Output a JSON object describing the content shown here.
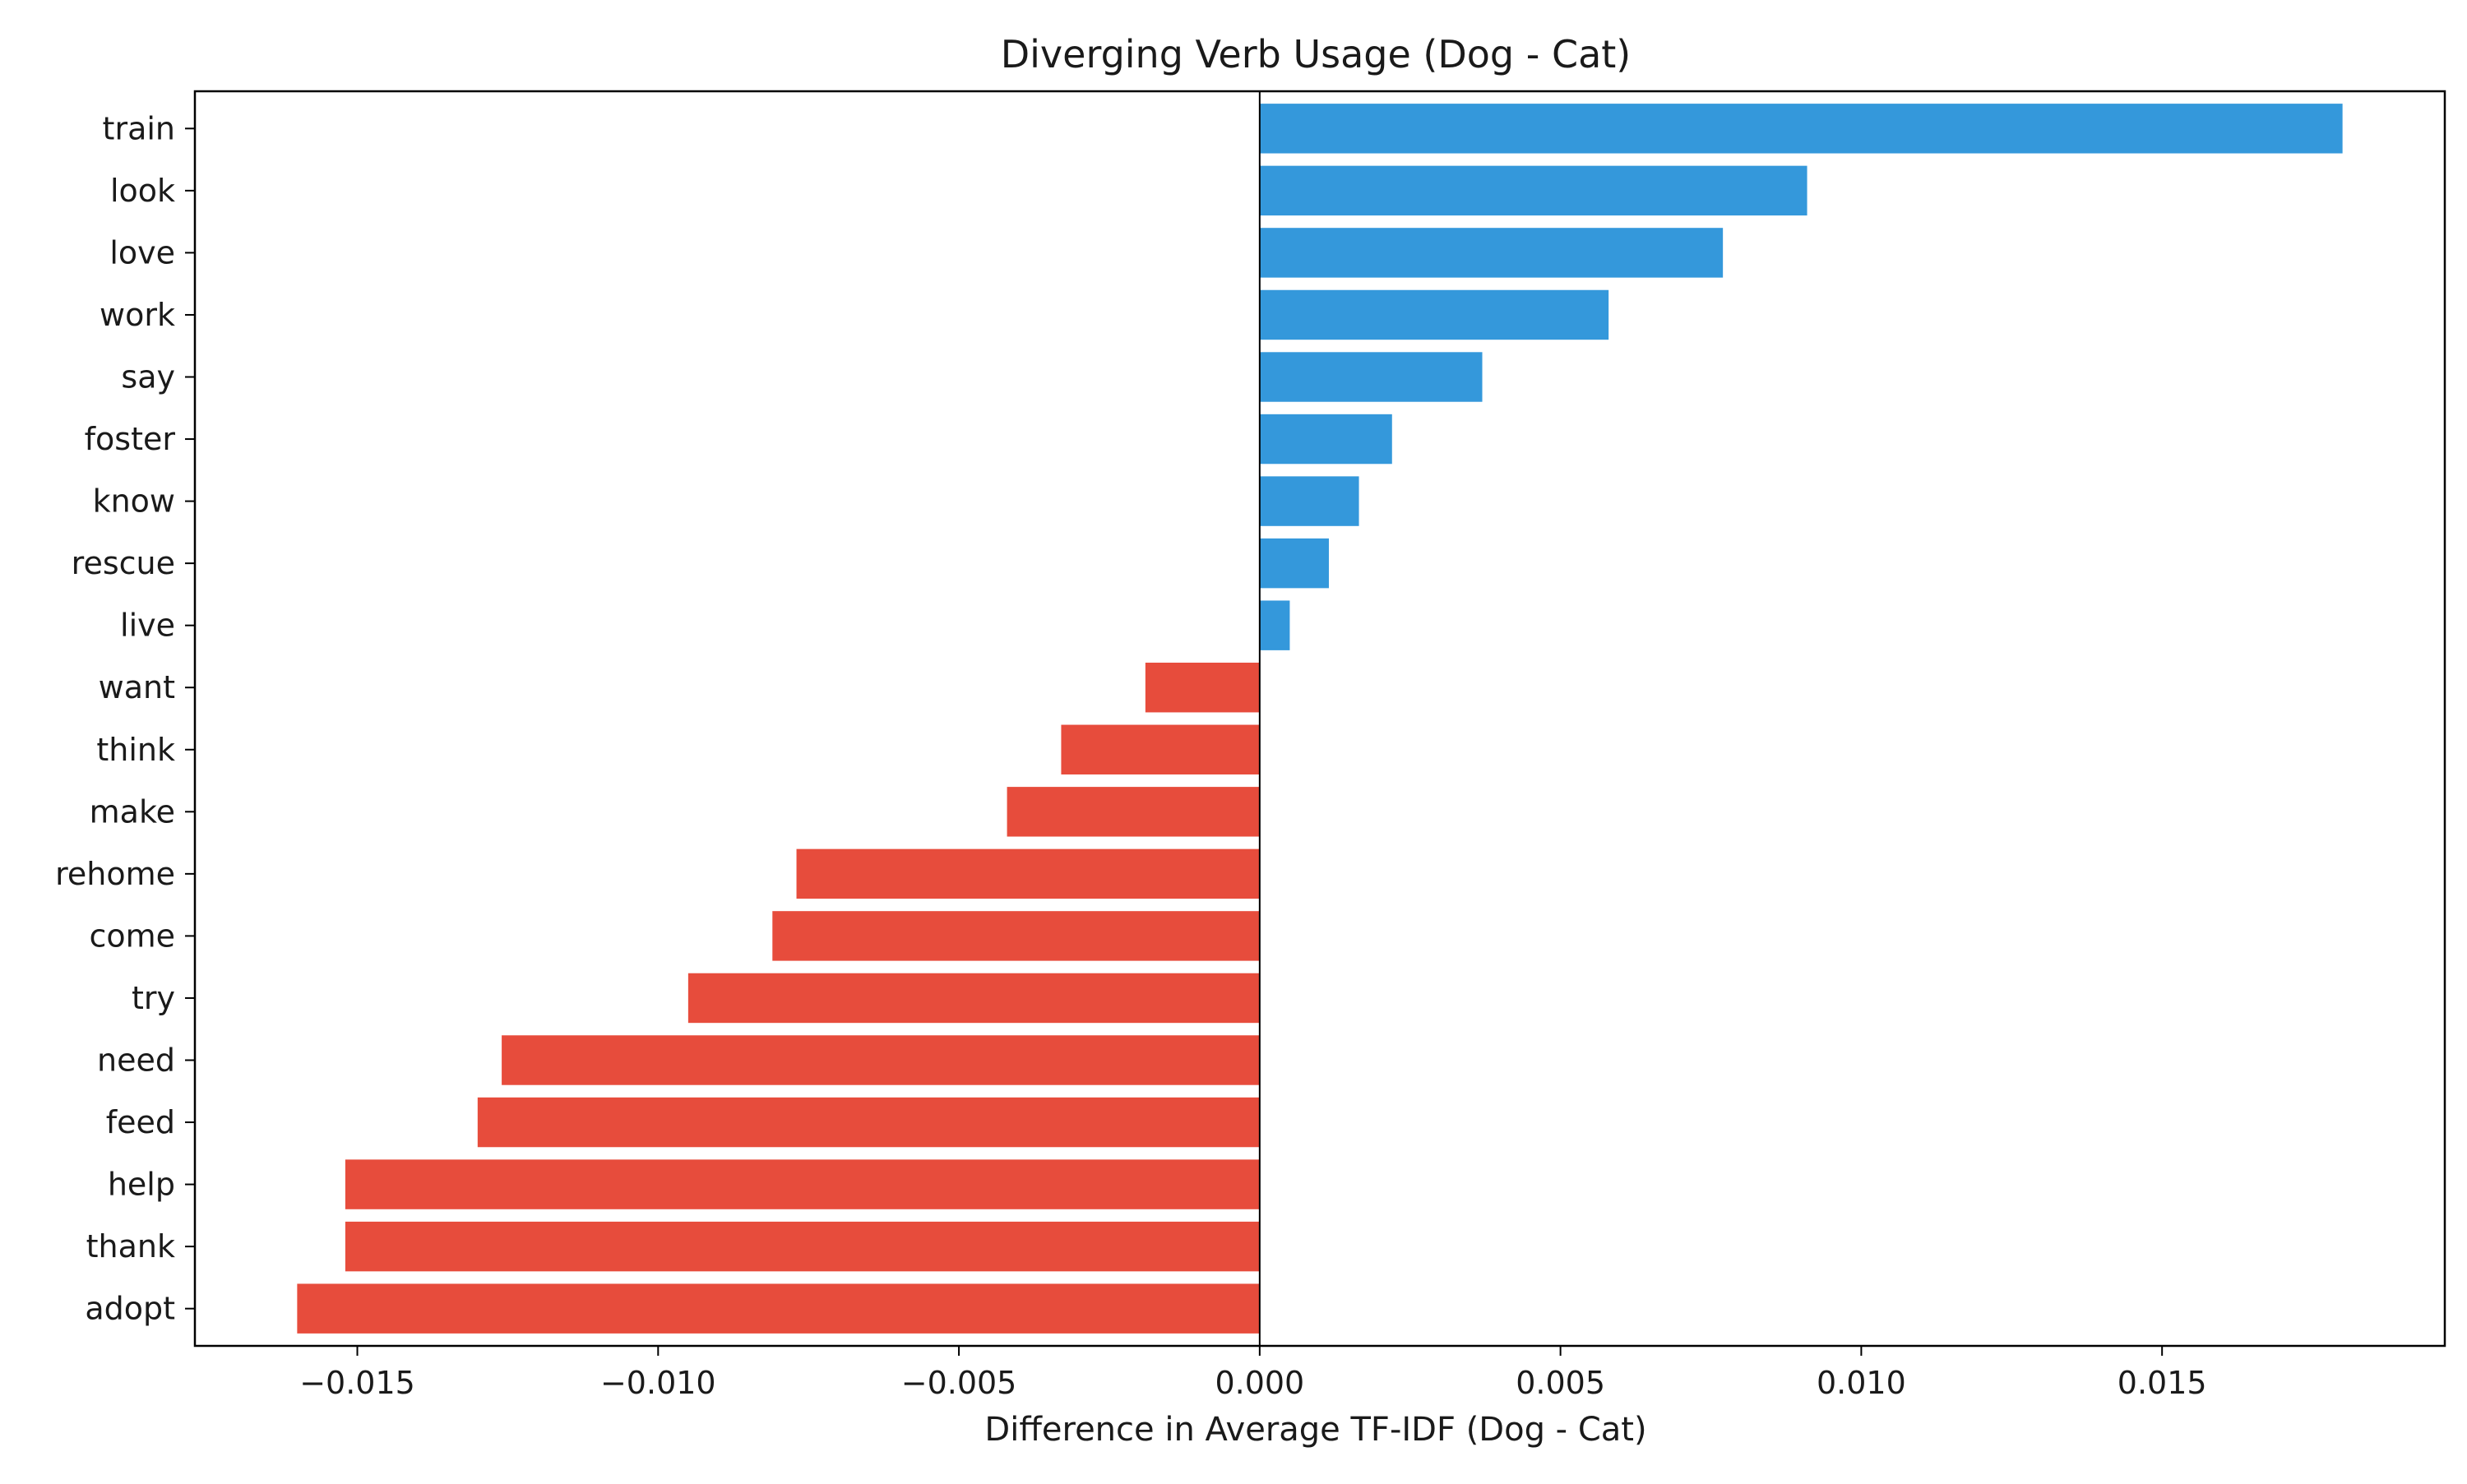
{
  "chart_data": {
    "type": "bar",
    "orientation": "horizontal",
    "title": "Diverging Verb Usage (Dog - Cat)",
    "xlabel": "Difference in Average TF-IDF (Dog - Cat)",
    "ylabel": "",
    "xlim": [
      -0.0177,
      0.0197
    ],
    "x_ticks": [
      -0.015,
      -0.01,
      -0.005,
      0.0,
      0.005,
      0.01,
      0.015
    ],
    "x_tick_labels": [
      "−0.015",
      "−0.010",
      "−0.005",
      "0.000",
      "0.005",
      "0.010",
      "0.015"
    ],
    "grid": false,
    "legend": "none",
    "zero_line": true,
    "colors": {
      "positive": "#3498db",
      "negative": "#e74c3c",
      "axis": "#000000"
    },
    "categories": [
      "train",
      "look",
      "love",
      "work",
      "say",
      "foster",
      "know",
      "rescue",
      "live",
      "want",
      "think",
      "make",
      "rehome",
      "come",
      "try",
      "need",
      "feed",
      "help",
      "thank",
      "adopt"
    ],
    "values": [
      0.018,
      0.0091,
      0.0077,
      0.0058,
      0.0037,
      0.0022,
      0.00165,
      0.00115,
      0.0005,
      -0.0019,
      -0.0033,
      -0.0042,
      -0.0077,
      -0.0081,
      -0.0095,
      -0.0126,
      -0.013,
      -0.0152,
      -0.0152,
      -0.016
    ]
  }
}
